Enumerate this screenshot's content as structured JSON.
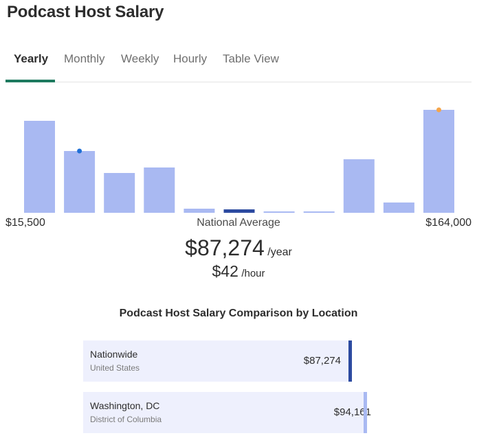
{
  "page": {
    "title": "Podcast Host Salary"
  },
  "tabs": [
    {
      "label": "Yearly",
      "active": true
    },
    {
      "label": "Monthly",
      "active": false
    },
    {
      "label": "Weekly",
      "active": false
    },
    {
      "label": "Hourly",
      "active": false
    },
    {
      "label": "Table View",
      "active": false
    }
  ],
  "colors": {
    "bar": "#a9b9f2",
    "bar_highlight": "#2c4aa0",
    "dot_blue": "#1f6fd6",
    "dot_orange": "#f5a54a",
    "tab_accent": "#1d7a5f"
  },
  "chart_data": {
    "type": "bar",
    "title": "",
    "xlabel": "",
    "ylabel": "",
    "x_range_labels": {
      "min": "$15,500",
      "center": "National Average",
      "max": "$164,000"
    },
    "values": [
      134,
      90,
      58,
      66,
      6,
      5,
      2,
      2,
      78,
      15,
      150
    ],
    "highlight_index": 5,
    "markers": [
      {
        "bar_index": 1,
        "color": "dot_blue"
      },
      {
        "bar_index": 10,
        "color": "dot_orange"
      }
    ],
    "ylim": [
      0,
      150
    ],
    "grid": false,
    "legend": "none"
  },
  "salary": {
    "yearly_amount": "$87,274",
    "yearly_unit": "/year",
    "hourly_amount": "$42",
    "hourly_unit": "/hour"
  },
  "comparison": {
    "title": "Podcast Host Salary Comparison by Location",
    "locations": [
      {
        "name": "Nationwide",
        "sub": "United States",
        "value": "$87,274",
        "amount": 87274,
        "bar_color": "#2c4aa0"
      },
      {
        "name": "Washington, DC",
        "sub": "District of Columbia",
        "value": "$94,161",
        "amount": 94161,
        "bar_color": "#a9b9f2"
      }
    ]
  }
}
